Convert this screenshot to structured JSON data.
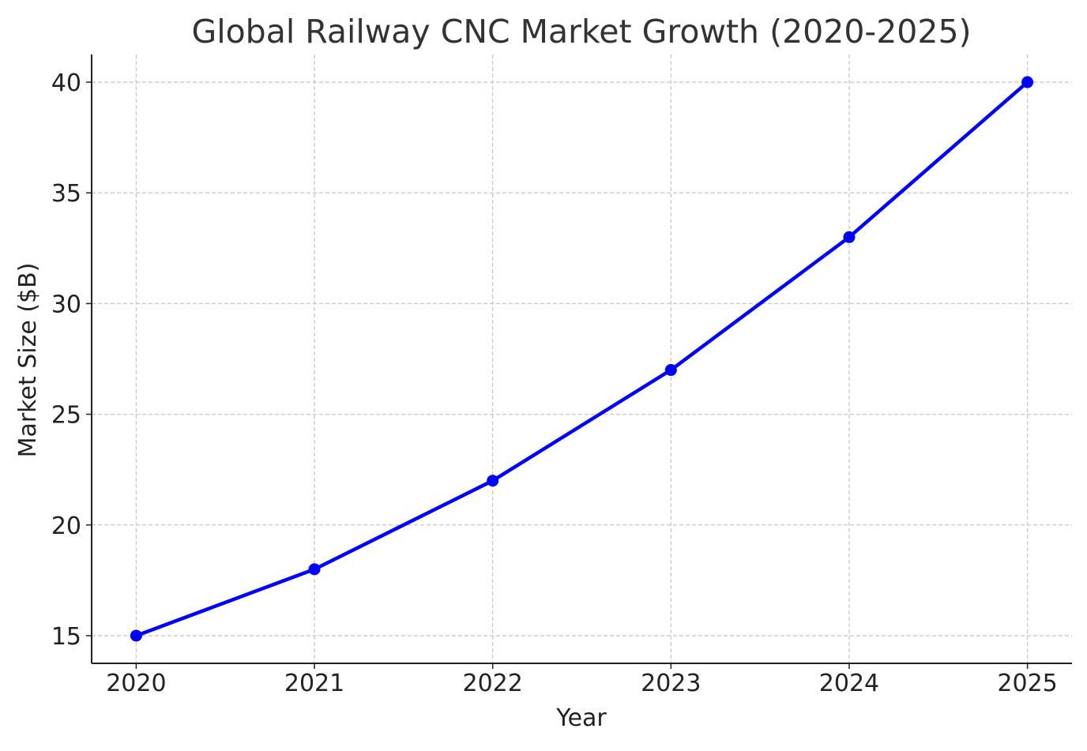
{
  "chart_data": {
    "type": "line",
    "title": "Global Railway CNC Market Growth (2020-2025)",
    "xlabel": "Year",
    "ylabel": "Market Size ($B)",
    "x": [
      2020,
      2021,
      2022,
      2023,
      2024,
      2025
    ],
    "x_tick_labels": [
      "2020",
      "2021",
      "2022",
      "2023",
      "2024",
      "2025"
    ],
    "y_ticks": [
      15,
      20,
      25,
      30,
      35,
      40
    ],
    "y_tick_labels": [
      "15",
      "20",
      "25",
      "30",
      "35",
      "40"
    ],
    "ylim": [
      13.75,
      41.25
    ],
    "xlim": [
      2019.75,
      2025.25
    ],
    "grid": true,
    "grid_style": "dashed",
    "series": [
      {
        "values": [
          15,
          18,
          22,
          27,
          33,
          40
        ],
        "color": "#0000ff",
        "marker": "circle"
      }
    ]
  }
}
